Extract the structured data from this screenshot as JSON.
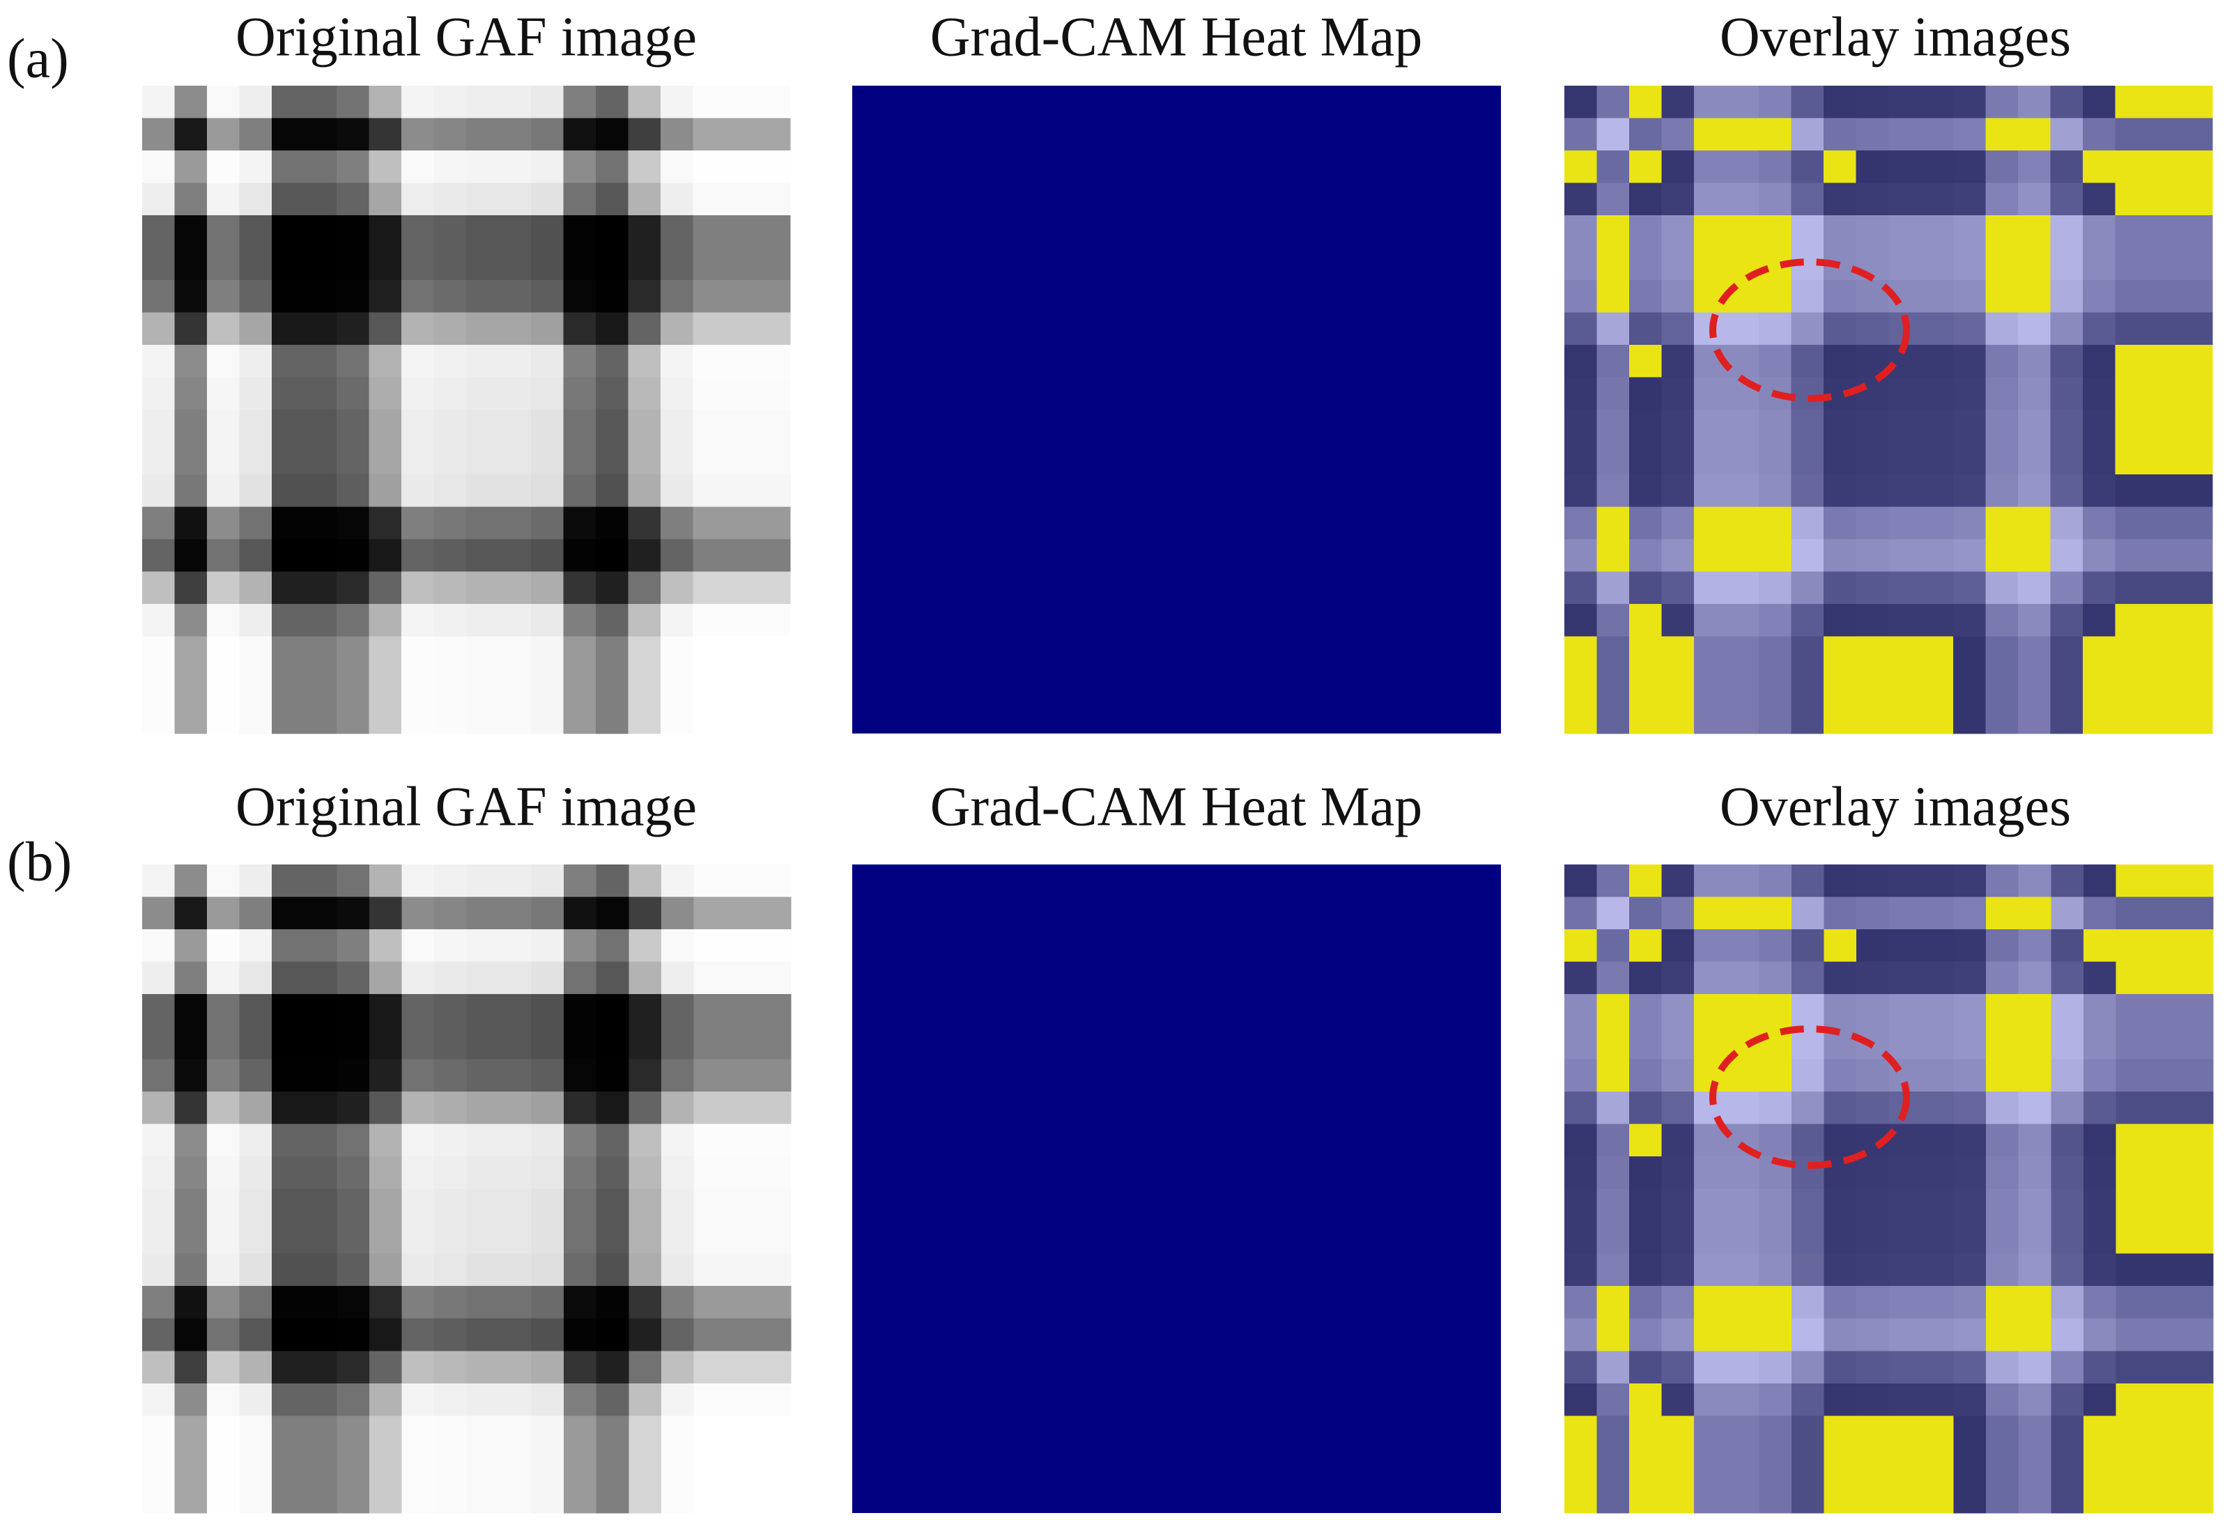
{
  "panels": [
    {
      "label": "(a)",
      "titles": [
        "Original GAF image",
        "Grad-CAM Heat Map",
        "Overlay images"
      ]
    },
    {
      "label": "(b)",
      "titles": [
        "Original GAF image",
        "Grad-CAM Heat Map",
        "Overlay images"
      ]
    }
  ]
}
